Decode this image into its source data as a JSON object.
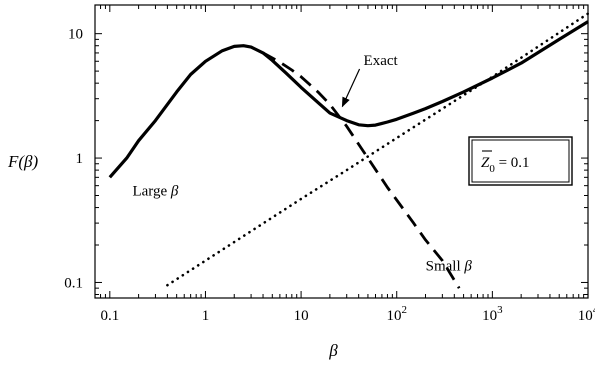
{
  "chart_data": {
    "type": "line",
    "xscale": "log",
    "yscale": "log",
    "xlim": [
      0.07,
      10000
    ],
    "ylim": [
      0.075,
      17
    ],
    "grid": false,
    "xlabel_parts": [
      {
        "t": "β",
        "italic": true
      }
    ],
    "ylabel_parts": [
      {
        "t": "F(",
        "italic": true
      },
      {
        "t": "β",
        "italic": true
      },
      {
        "t": ")",
        "italic": true
      }
    ],
    "x_ticks": [
      {
        "value": 0.1,
        "label": "0.1"
      },
      {
        "value": 1,
        "label": "1"
      },
      {
        "value": 10,
        "label": "10"
      },
      {
        "value": 100,
        "label": "10",
        "sup": "2"
      },
      {
        "value": 1000,
        "label": "10",
        "sup": "3"
      },
      {
        "value": 10000,
        "label": "10",
        "sup": "4"
      }
    ],
    "y_ticks": [
      {
        "value": 0.1,
        "label": "0.1"
      },
      {
        "value": 1,
        "label": "1"
      },
      {
        "value": 10,
        "label": "10"
      }
    ],
    "series": [
      {
        "style": "solid",
        "x": [
          0.1,
          0.15,
          0.2,
          0.3,
          0.5,
          0.7,
          1,
          1.5,
          2,
          2.5,
          3,
          4,
          5,
          7,
          10,
          15,
          20,
          30,
          40,
          50,
          60,
          80,
          100,
          150,
          200,
          300,
          500,
          1000,
          2000,
          5000,
          10000
        ],
        "y": [
          0.7,
          1.0,
          1.38,
          2.0,
          3.4,
          4.7,
          6.0,
          7.3,
          7.9,
          8.0,
          7.8,
          7.0,
          6.1,
          4.8,
          3.7,
          2.8,
          2.3,
          2.0,
          1.85,
          1.82,
          1.84,
          1.95,
          2.05,
          2.3,
          2.5,
          2.85,
          3.4,
          4.4,
          5.8,
          9.0,
          12.5
        ]
      },
      {
        "style": "dashed",
        "x": [
          4,
          6,
          8,
          10,
          15,
          20,
          30,
          50,
          80,
          100,
          150,
          200,
          300,
          450
        ],
        "y": [
          7.0,
          5.9,
          5.1,
          4.5,
          3.4,
          2.7,
          1.8,
          1.0,
          0.58,
          0.46,
          0.3,
          0.22,
          0.15,
          0.09
        ]
      },
      {
        "style": "dotted",
        "x": [
          0.4,
          1,
          10,
          30,
          100,
          1000,
          10000
        ],
        "y": [
          0.095,
          0.15,
          0.47,
          0.8,
          1.45,
          4.5,
          14.5
        ]
      }
    ],
    "annotations": [
      {
        "kind": "arrow",
        "text": "Exact",
        "text_x": 45,
        "text_y": 5.6,
        "to_x": 27,
        "to_y": 2.6
      },
      {
        "kind": "label",
        "text": "Large ",
        "greek": "β",
        "x": 0.3,
        "y": 0.5
      },
      {
        "kind": "label",
        "text": "Small ",
        "greek": "β",
        "x": 350,
        "y": 0.125
      }
    ],
    "legend_box": {
      "symbol": "Z",
      "subscript": "0",
      "rest": " = 0.1"
    }
  }
}
